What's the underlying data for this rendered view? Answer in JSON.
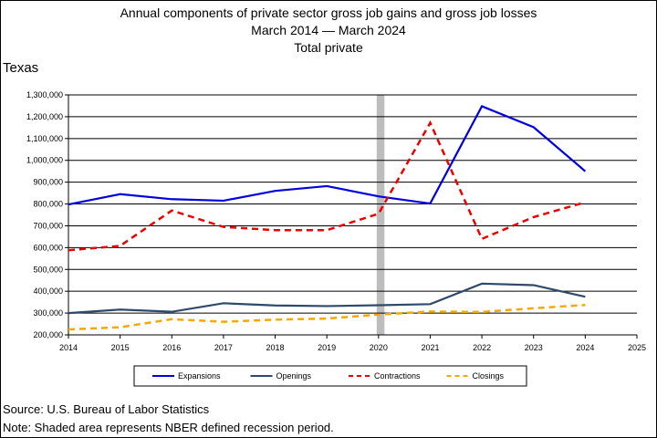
{
  "chart_data": {
    "type": "line",
    "title": "Annual components of private sector gross job gains and gross job losses",
    "subtitle": "March 2014 — March 2024",
    "subtitle2": "Total private",
    "region_label": "Texas",
    "x": [
      2014,
      2015,
      2016,
      2017,
      2018,
      2019,
      2020,
      2021,
      2022,
      2023,
      2024
    ],
    "x_ticks": [
      "2014",
      "2015",
      "2016",
      "2017",
      "2018",
      "2019",
      "2020",
      "2021",
      "2022",
      "2023",
      "2024",
      "2025"
    ],
    "xlim": [
      2014,
      2025
    ],
    "ylim": [
      200000,
      1300000
    ],
    "y_ticks": [
      "200,000",
      "300,000",
      "400,000",
      "500,000",
      "600,000",
      "700,000",
      "800,000",
      "900,000",
      "1,000,000",
      "1,100,000",
      "1,200,000",
      "1,300,000"
    ],
    "y_tick_values": [
      200000,
      300000,
      400000,
      500000,
      600000,
      700000,
      800000,
      900000,
      1000000,
      1100000,
      1200000,
      1300000
    ],
    "grid": "horizontal",
    "recession": {
      "start": 2020.0,
      "end": 2020.15
    },
    "series": [
      {
        "name": "Expansions",
        "color": "#0000dd",
        "dash": "solid",
        "values": [
          798000,
          845000,
          822000,
          815000,
          860000,
          882000,
          835000,
          802000,
          1248000,
          1152000,
          950000
        ]
      },
      {
        "name": "Openings",
        "color": "#2e4a6b",
        "dash": "solid",
        "values": [
          300000,
          316000,
          306000,
          345000,
          335000,
          332000,
          336000,
          341000,
          435000,
          428000,
          375000
        ]
      },
      {
        "name": "Contractions",
        "color": "#ee0000",
        "dash": "dashed",
        "values": [
          588000,
          608000,
          770000,
          695000,
          680000,
          680000,
          755000,
          1172000,
          640000,
          740000,
          808000
        ]
      },
      {
        "name": "Closings",
        "color": "#f5a800",
        "dash": "dashed",
        "values": [
          225000,
          235000,
          272000,
          260000,
          270000,
          275000,
          293000,
          307000,
          305000,
          322000,
          337000
        ]
      }
    ],
    "legend_position": "bottom"
  },
  "footer": {
    "source": "Source: U.S. Bureau of Labor Statistics",
    "note": "Note: Shaded area represents NBER defined recession period."
  }
}
